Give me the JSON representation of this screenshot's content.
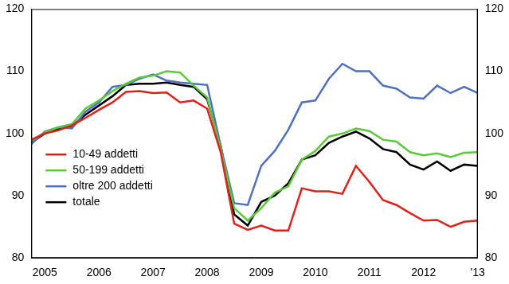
{
  "chart_data": {
    "type": "line",
    "categories": [
      null,
      "2005",
      null,
      null,
      null,
      "2006",
      null,
      null,
      null,
      "2007",
      null,
      null,
      null,
      "2008",
      null,
      null,
      null,
      "2009",
      null,
      null,
      null,
      "2010",
      null,
      null,
      null,
      "2011",
      null,
      null,
      null,
      "2012",
      null,
      null,
      null,
      "'13"
    ],
    "series": [
      {
        "name": "10-49 addetti",
        "color": "#e0201b",
        "values": [
          99,
          100,
          100.5,
          101.3,
          102.5,
          103.8,
          105,
          106.7,
          106.8,
          106.5,
          106.6,
          105,
          105.3,
          104,
          97,
          85.5,
          84.5,
          85.2,
          84.4,
          84.4,
          91.2,
          90.7,
          90.7,
          90.3,
          94.8,
          92.2,
          89.3,
          88.5,
          87.2,
          86,
          86.1,
          85,
          85.8,
          86
        ]
      },
      {
        "name": "50-199 addetti",
        "color": "#5cc93a",
        "values": [
          98.8,
          100.2,
          101,
          101.5,
          104,
          105.3,
          106.8,
          108,
          109,
          109.3,
          110,
          109.8,
          107.7,
          105.8,
          97.5,
          88,
          86,
          88,
          90.5,
          91.5,
          95.8,
          97.2,
          99.5,
          100,
          100.8,
          100.4,
          99,
          98.7,
          97,
          96.5,
          96.8,
          96.2,
          96.9,
          97
        ]
      },
      {
        "name": "oltre 200 addetti",
        "color": "#4f6fc0",
        "values": [
          98.3,
          100.3,
          101,
          100.8,
          103.5,
          105,
          107.5,
          107.8,
          108.8,
          109.5,
          108.5,
          108.2,
          108,
          107.8,
          98,
          88.8,
          88.5,
          94.8,
          97.2,
          100.6,
          105,
          105.3,
          108.8,
          111.2,
          110,
          110,
          107.7,
          107.2,
          105.8,
          105.6,
          107.7,
          106.5,
          107.5,
          106.5
        ]
      },
      {
        "name": "totale",
        "color": "#000000",
        "values": [
          98.5,
          100,
          100.8,
          101.2,
          103,
          104.5,
          106,
          107.8,
          108,
          108,
          108.2,
          107.8,
          107.5,
          105.5,
          98,
          87,
          85.2,
          89,
          90,
          92,
          95.8,
          96.5,
          98.5,
          99.5,
          100.3,
          99.2,
          97.5,
          97,
          95,
          94.2,
          95.5,
          94,
          95,
          94.8
        ]
      }
    ],
    "ylim": [
      80,
      120
    ],
    "yticks": [
      80,
      90,
      100,
      110,
      120
    ],
    "y2lim": [
      80,
      120
    ],
    "y2ticks": [
      80,
      90,
      100,
      110,
      120
    ],
    "grid": false,
    "legend": "lower left"
  }
}
